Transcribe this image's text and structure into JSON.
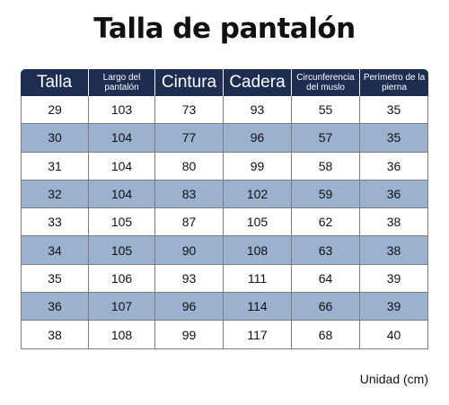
{
  "title": "Talla de pantalón",
  "columns": [
    {
      "label": "Talla",
      "size": "big"
    },
    {
      "label": "Largo del pantalón",
      "size": "small"
    },
    {
      "label": "Cintura",
      "size": "big"
    },
    {
      "label": "Cadera",
      "size": "big"
    },
    {
      "label": "Circunferencia del muslo",
      "size": "small"
    },
    {
      "label": "Perímetro de la pierna",
      "size": "small"
    }
  ],
  "rows": [
    [
      "29",
      "103",
      "73",
      "93",
      "55",
      "35"
    ],
    [
      "30",
      "104",
      "77",
      "96",
      "57",
      "35"
    ],
    [
      "31",
      "104",
      "80",
      "99",
      "58",
      "36"
    ],
    [
      "32",
      "104",
      "83",
      "102",
      "59",
      "36"
    ],
    [
      "33",
      "105",
      "87",
      "105",
      "62",
      "38"
    ],
    [
      "34",
      "105",
      "90",
      "108",
      "63",
      "38"
    ],
    [
      "35",
      "106",
      "93",
      "111",
      "64",
      "39"
    ],
    [
      "36",
      "107",
      "96",
      "114",
      "66",
      "39"
    ],
    [
      "38",
      "108",
      "99",
      "117",
      "68",
      "40"
    ]
  ],
  "unit_note": "Unidad (cm)",
  "colors": {
    "header_bg": "#1e2d52",
    "header_text": "#ffffff",
    "stripe_bg": "#9ab2cf",
    "row_bg": "#ffffff"
  }
}
